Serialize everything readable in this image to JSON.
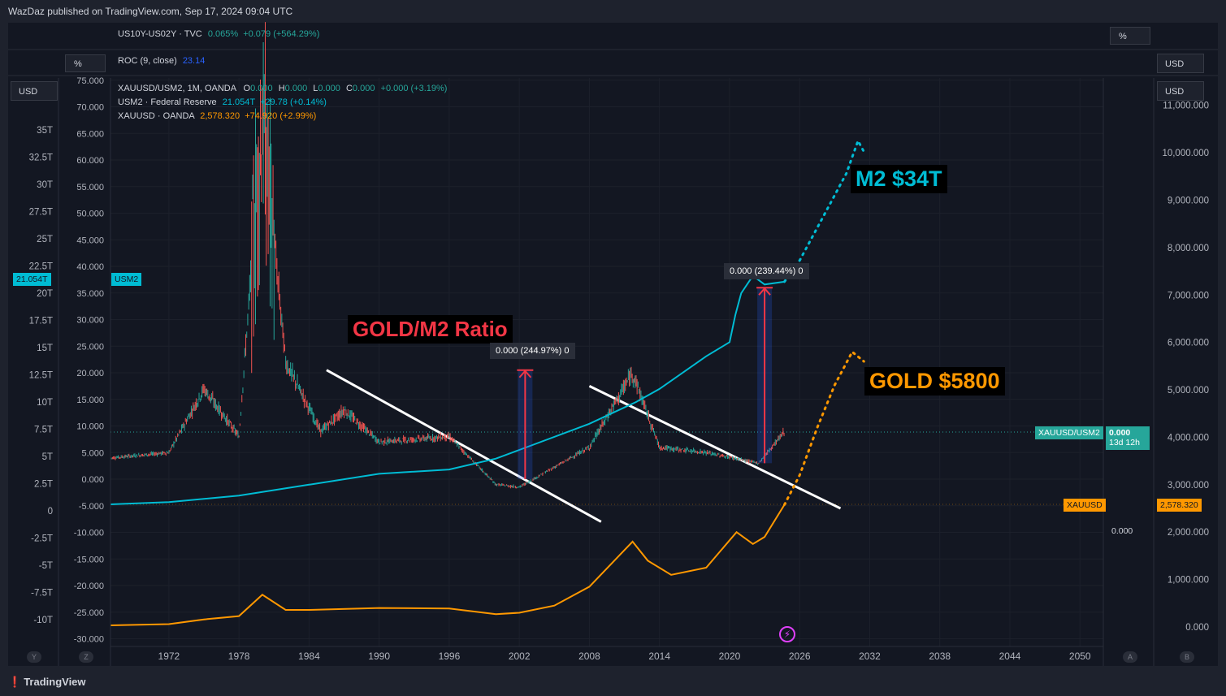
{
  "header": {
    "published_text": "WazDaz published on TradingView.com, Sep 17, 2024 09:04 UTC"
  },
  "panes": {
    "spread": {
      "title": "US10Y-US02Y · TVC",
      "value": "0.065%",
      "change": "+0.079 (+564.29%)",
      "scale_label": "%"
    },
    "roc": {
      "title": "ROC (9, close)",
      "value": "23.14",
      "scale_label": "%",
      "right_scale_label": "USD"
    }
  },
  "main": {
    "left_scale_label": "USD",
    "right_scale_label": "USD",
    "legend": {
      "ratio": {
        "title": "XAUUSD/USM2, 1M, OANDA",
        "o_label": "O",
        "o": "0.000",
        "h_label": "H",
        "h": "0.000",
        "l_label": "L",
        "l": "0.000",
        "c_label": "C",
        "c": "0.000",
        "change": "+0.000 (+3.19%)"
      },
      "m2": {
        "title": "USM2 · Federal Reserve",
        "value": "21.054T",
        "change": "+29.78 (+0.14%)"
      },
      "gold": {
        "title": "XAUUSD · OANDA",
        "value": "2,578.320",
        "change": "+74.920 (+2.99%)"
      }
    },
    "left_tag": {
      "value": "21.054T",
      "series": "USM2"
    },
    "right_tags": {
      "ratio_name": "XAUUSD/USM2",
      "ratio_value": "0.000",
      "ratio_countdown": "13d 12h",
      "gold_name": "XAUUSD",
      "gold_value": "2,578.320",
      "zero_label": "0.000"
    },
    "annotations": {
      "ratio_title": "GOLD/M2 Ratio",
      "m2_target": "M2 $34T",
      "gold_target": "GOLD $5800",
      "measure1": "0.000 (244.97%) 0",
      "measure2": "0.000 (239.44%) 0"
    },
    "axis_buttons": {
      "y": "Y",
      "z": "Z",
      "a": "A",
      "b": "B"
    }
  },
  "footer": {
    "brand": "TradingView"
  },
  "colors": {
    "m2": "#00bcd4",
    "gold": "#ff9800",
    "ratio_up": "#26a69a",
    "ratio_down": "#ef5350",
    "annot_red": "#f23645",
    "background": "#131722"
  },
  "chart_data": {
    "type": "line",
    "title": "XAUUSD/USM2, 1M, OANDA",
    "x_ticks": [
      "1972",
      "1978",
      "1984",
      "1990",
      "1996",
      "2002",
      "2008",
      "2014",
      "2020",
      "2026",
      "2032",
      "2038",
      "2044",
      "2050"
    ],
    "x_range": [
      1967,
      2052
    ],
    "axes": {
      "ratio_axis": {
        "ticks": [
          "75.000",
          "70.000",
          "65.000",
          "60.000",
          "55.000",
          "50.000",
          "45.000",
          "40.000",
          "35.000",
          "30.000",
          "25.000",
          "20.000",
          "15.000",
          "10.000",
          "5.000",
          "0.000",
          "-5.000",
          "-10.000",
          "-15.000",
          "-20.000",
          "-25.000",
          "-30.000"
        ]
      },
      "m2_axis": {
        "ticks": [
          "35T",
          "32.5T",
          "30T",
          "27.5T",
          "25T",
          "22.5T",
          "20T",
          "17.5T",
          "15T",
          "12.5T",
          "10T",
          "7.5T",
          "5T",
          "2.5T",
          "0",
          "-2.5T",
          "-5T",
          "-7.5T",
          "-10T"
        ]
      },
      "gold_axis": {
        "ticks": [
          "11,000.000",
          "10,000.000",
          "9,000.000",
          "8,000.000",
          "7,000.000",
          "6,000.000",
          "5,000.000",
          "4,000.000",
          "3,000.000",
          "2,000.000",
          "1,000.000",
          "0.000"
        ]
      }
    },
    "series": [
      {
        "name": "USM2 (T)",
        "x": [
          1967,
          1972,
          1978,
          1984,
          1990,
          1996,
          2000,
          2002,
          2008,
          2012,
          2014,
          2018,
          2020,
          2020.5,
          2021,
          2022,
          2023,
          2024.7
        ],
        "values": [
          0.6,
          0.8,
          1.4,
          2.4,
          3.4,
          3.8,
          4.8,
          5.6,
          8.0,
          10.0,
          11.2,
          14.2,
          15.5,
          18.0,
          20.0,
          21.6,
          20.8,
          21.05
        ]
      },
      {
        "name": "XAUUSD",
        "x": [
          1967,
          1972,
          1975,
          1978,
          1980,
          1982,
          1984,
          1990,
          1996,
          2000,
          2002,
          2005,
          2008,
          2011.7,
          2013,
          2015,
          2018,
          2020.6,
          2022,
          2023,
          2024.7
        ],
        "values": [
          35,
          60,
          160,
          230,
          680,
          360,
          360,
          400,
          390,
          270,
          300,
          450,
          850,
          1800,
          1400,
          1100,
          1250,
          2000,
          1750,
          1900,
          2578
        ]
      },
      {
        "name": "GOLD/M2 Ratio",
        "x": [
          1967,
          1972,
          1975,
          1978,
          1980,
          1982,
          1985,
          1987,
          1990,
          1996,
          2000,
          2002,
          2008,
          2011.7,
          2014,
          2018,
          2022.5,
          2024.7
        ],
        "values": [
          4,
          5,
          17,
          8,
          67,
          22,
          9,
          13,
          7,
          8,
          -1,
          -1.5,
          6,
          20,
          6,
          5,
          3,
          9
        ]
      },
      {
        "name": "M2 projection",
        "x": [
          2024.7,
          2026,
          2028,
          2030,
          2031,
          2031.5
        ],
        "values": [
          21.05,
          23,
          27,
          31,
          34,
          33
        ]
      },
      {
        "name": "Gold projection",
        "x": [
          2024.7,
          2026,
          2027.5,
          2029,
          2030.5,
          2031.5
        ],
        "values": [
          2578,
          3200,
          4200,
          5100,
          5800,
          5600
        ]
      }
    ],
    "trendlines": [
      {
        "name": "Ratio downtrend 1",
        "from": [
          1985.5,
          20.5
        ],
        "to": [
          2009,
          -8.0
        ]
      },
      {
        "name": "Ratio downtrend 2",
        "from": [
          2008,
          17.5
        ],
        "to": [
          2029.5,
          -5.5
        ]
      }
    ],
    "measurements": [
      {
        "label": "0.000 (244.97%) 0",
        "from": [
          2002.5,
          0.0
        ],
        "to": [
          2002.5,
          20.5
        ]
      },
      {
        "label": "0.000 (239.44%) 0",
        "from": [
          2023.0,
          3.0
        ],
        "to": [
          2023.0,
          36.0
        ]
      }
    ]
  }
}
